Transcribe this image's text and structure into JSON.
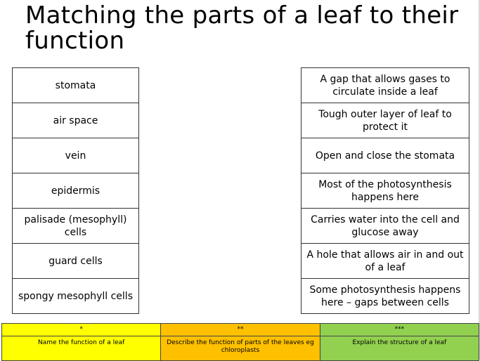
{
  "title": "Matching the parts of a leaf to their function",
  "parts": [
    "stomata",
    "air space",
    "vein",
    "epidermis",
    "palisade (mesophyll) cells",
    "guard cells",
    "spongy mesophyll cells"
  ],
  "functions": [
    "A gap that allows gases to circulate inside a leaf",
    "Tough outer layer of leaf to protect it",
    "Open and close the stomata",
    "Most of the photosynthesis happens here",
    "Carries water into the cell and glucose away",
    "A hole that allows air in and out of a leaf",
    "Some photosynthesis happens here – gaps between cells"
  ],
  "levels": [
    {
      "stars": "*",
      "text": "Name the function of a leaf",
      "color": "#ffff00"
    },
    {
      "stars": "**",
      "text": "Describe the function of parts of the leaves eg chloroplasts",
      "color": "#ffc000"
    },
    {
      "stars": "***",
      "text": "Explain the structure of a leaf",
      "color": "#92d050"
    }
  ]
}
